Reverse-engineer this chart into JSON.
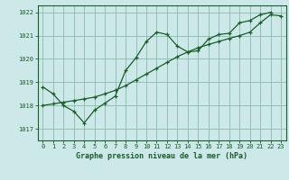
{
  "title": "Graphe pression niveau de la mer (hPa)",
  "bg_color": "#cce8e8",
  "grid_color": "#88bbaa",
  "line_color": "#1a5c2a",
  "ylim": [
    1016.5,
    1022.3
  ],
  "xlim": [
    -0.5,
    23.5
  ],
  "yticks": [
    1017,
    1018,
    1019,
    1020,
    1021,
    1022
  ],
  "xticks": [
    0,
    1,
    2,
    3,
    4,
    5,
    6,
    7,
    8,
    9,
    10,
    11,
    12,
    13,
    14,
    15,
    16,
    17,
    18,
    19,
    20,
    21,
    22,
    23
  ],
  "series1_x": [
    0,
    1,
    2,
    3,
    4,
    5,
    6,
    7,
    8,
    9,
    10,
    11,
    12,
    13,
    14,
    15,
    16,
    17,
    18,
    19,
    20,
    21,
    22
  ],
  "series1_y": [
    1018.8,
    1018.5,
    1018.0,
    1017.75,
    1017.25,
    1017.8,
    1018.1,
    1018.4,
    1019.5,
    1020.05,
    1020.75,
    1021.15,
    1021.05,
    1020.55,
    1020.3,
    1020.35,
    1020.85,
    1021.05,
    1021.1,
    1021.55,
    1021.65,
    1021.9,
    1022.0
  ],
  "series2_x": [
    0,
    1,
    2,
    3,
    4,
    5,
    6,
    7,
    8,
    9,
    10,
    11,
    12,
    13,
    14,
    15,
    16,
    17,
    18,
    19,
    20,
    21,
    22,
    23
  ],
  "series2_y": [
    1018.0,
    1018.07,
    1018.14,
    1018.21,
    1018.28,
    1018.36,
    1018.5,
    1018.65,
    1018.85,
    1019.1,
    1019.35,
    1019.6,
    1019.85,
    1020.1,
    1020.3,
    1020.48,
    1020.62,
    1020.75,
    1020.88,
    1021.0,
    1021.15,
    1021.55,
    1021.9,
    1021.85
  ],
  "title_fontsize": 6,
  "tick_fontsize": 5,
  "xlabel_tick_fontsize": 5
}
